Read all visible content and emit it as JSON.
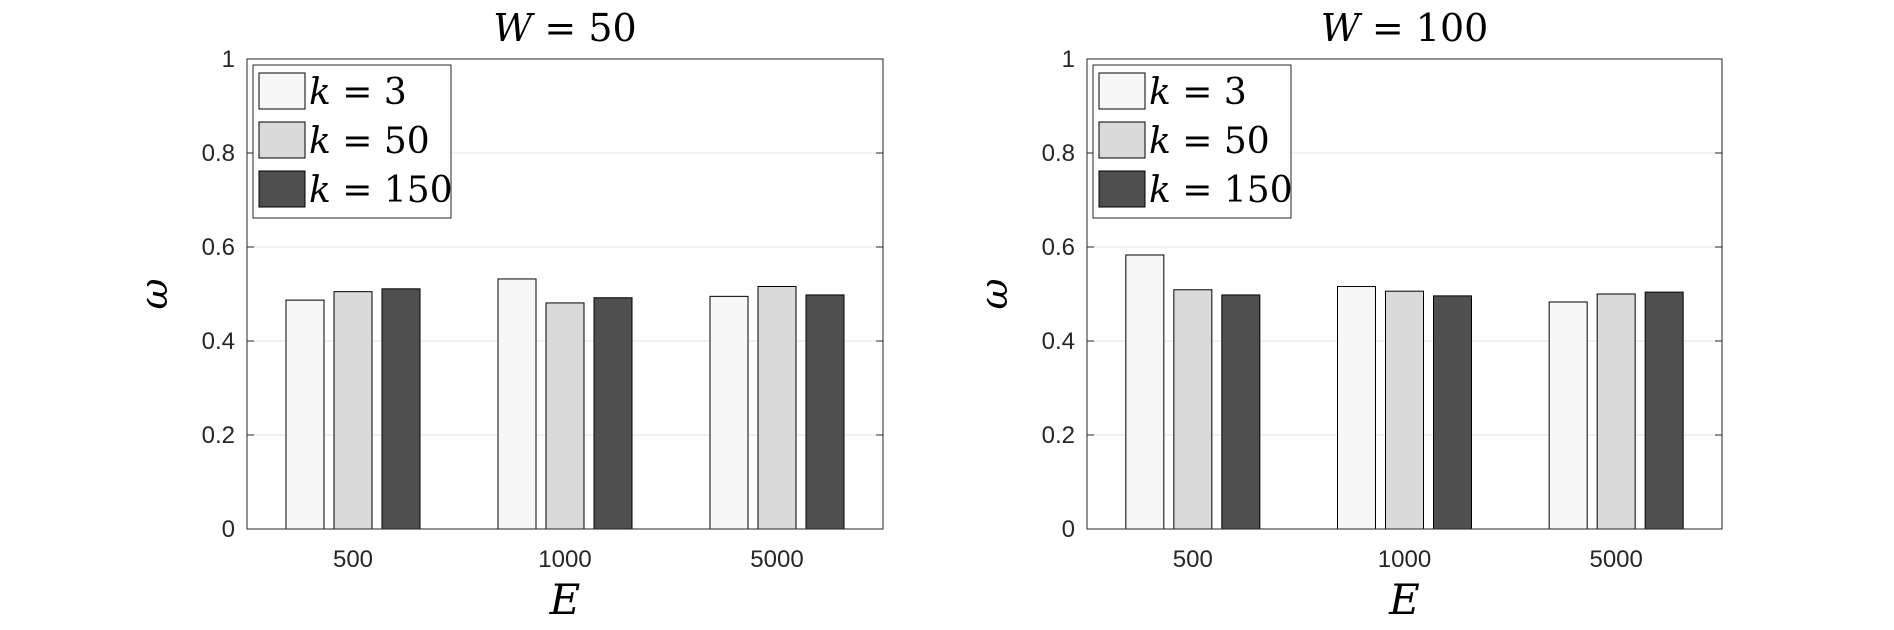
{
  "chart_data": [
    {
      "type": "bar",
      "title": "W = 50",
      "title_var": "W",
      "title_val": "50",
      "xlabel": "E",
      "ylabel": "ω",
      "categories": [
        "500",
        "1000",
        "5000"
      ],
      "ylim": [
        0,
        1
      ],
      "yticks": [
        "0",
        "0.2",
        "0.4",
        "0.6",
        "0.8",
        "1"
      ],
      "grid": true,
      "legend_position": "top-left",
      "series": [
        {
          "name": "k = 3",
          "var": "k",
          "val": "3",
          "color": "#f7f7f7",
          "values": [
            0.487,
            0.532,
            0.495
          ]
        },
        {
          "name": "k = 50",
          "var": "k",
          "val": "50",
          "color": "#dadada",
          "values": [
            0.505,
            0.481,
            0.516
          ]
        },
        {
          "name": "k = 150",
          "var": "k",
          "val": "150",
          "color": "#4f4f4f",
          "values": [
            0.511,
            0.492,
            0.498
          ]
        }
      ]
    },
    {
      "type": "bar",
      "title": "W = 100",
      "title_var": "W",
      "title_val": "100",
      "xlabel": "E",
      "ylabel": "ω",
      "categories": [
        "500",
        "1000",
        "5000"
      ],
      "ylim": [
        0,
        1
      ],
      "yticks": [
        "0",
        "0.2",
        "0.4",
        "0.6",
        "0.8",
        "1"
      ],
      "grid": true,
      "legend_position": "top-left",
      "series": [
        {
          "name": "k = 3",
          "var": "k",
          "val": "3",
          "color": "#f7f7f7",
          "values": [
            0.583,
            0.516,
            0.483
          ]
        },
        {
          "name": "k = 50",
          "var": "k",
          "val": "50",
          "color": "#dadada",
          "values": [
            0.509,
            0.506,
            0.5
          ]
        },
        {
          "name": "k = 150",
          "var": "k",
          "val": "150",
          "color": "#4f4f4f",
          "values": [
            0.498,
            0.496,
            0.504
          ]
        }
      ]
    }
  ]
}
